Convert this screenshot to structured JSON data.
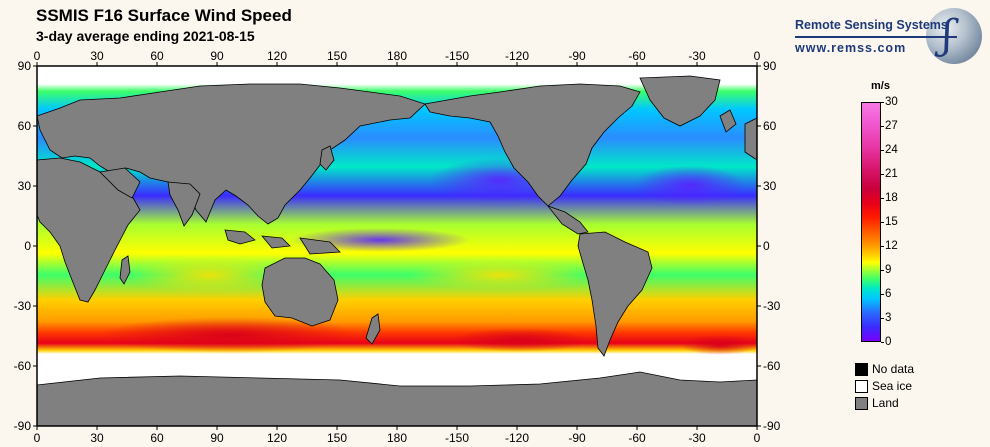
{
  "title": "SSMIS F16 Surface Wind Speed",
  "subtitle": "3-day average ending 2021-08-15",
  "logo": {
    "name": "Remote Sensing Systems",
    "url": "www.remss.com"
  },
  "map": {
    "lon_ticks": [
      "0",
      "30",
      "60",
      "90",
      "120",
      "150",
      "180",
      "-150",
      "-120",
      "-90",
      "-60",
      "-30",
      "0"
    ],
    "lat_ticks": [
      "90",
      "60",
      "30",
      "0",
      "-30",
      "-60",
      "-90"
    ],
    "land_color": "#808080",
    "sea_ice_color": "#ffffff",
    "no_data_color": "#000000"
  },
  "colorbar": {
    "unit": "m/s",
    "ticks": [
      "0",
      "3",
      "6",
      "9",
      "12",
      "15",
      "18",
      "21",
      "24",
      "27",
      "30"
    ],
    "min": 0,
    "max": 30
  },
  "legend": [
    {
      "label": "No data",
      "color": "#000000"
    },
    {
      "label": "Sea ice",
      "color": "#ffffff"
    },
    {
      "label": "Land",
      "color": "#808080"
    }
  ]
}
